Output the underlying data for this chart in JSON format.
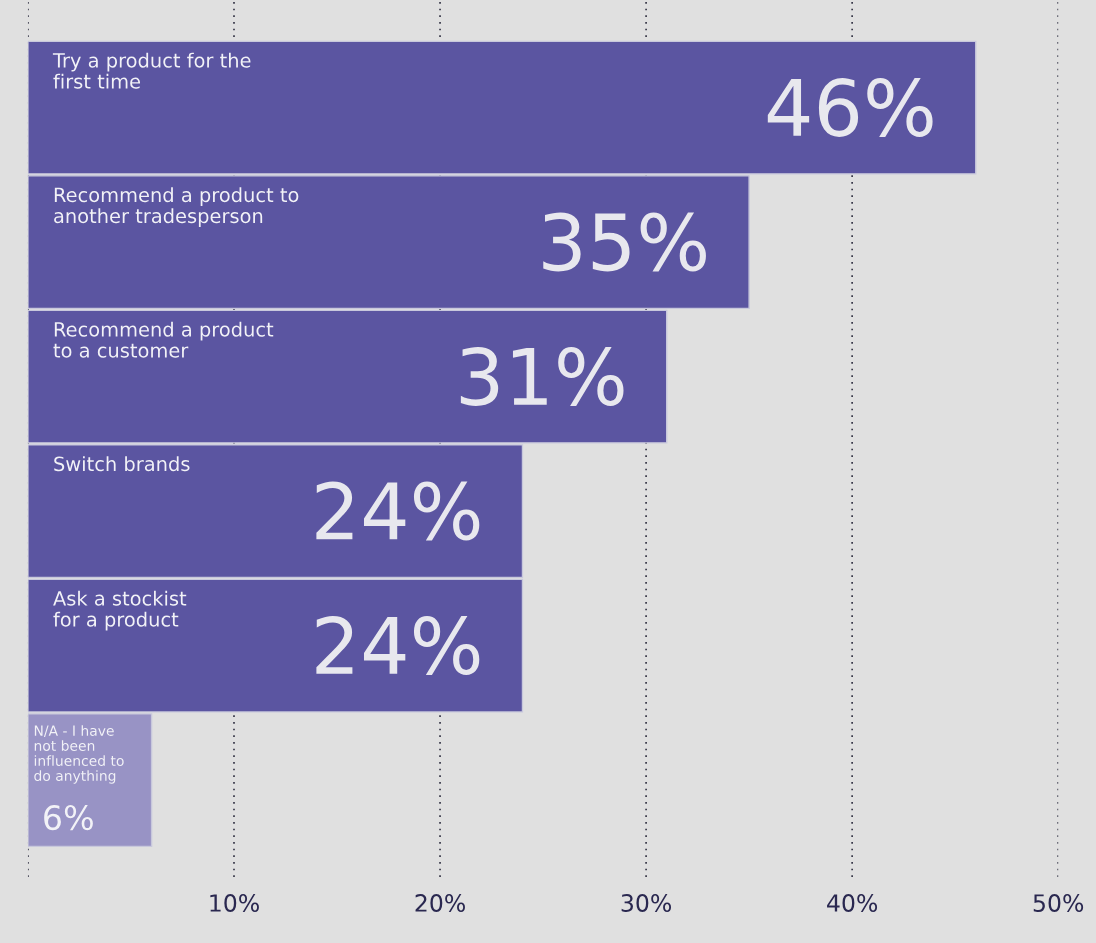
{
  "chart_data": {
    "type": "bar",
    "orientation": "horizontal",
    "categories": [
      "Try a product for the\nfirst time",
      "Recommend a product to\nanother tradesperson",
      "Recommend a product\nto a customer",
      "Switch brands",
      "Ask a stockist\nfor a product",
      "N/A - I have\nnot been\ninfluenced to\ndo anything"
    ],
    "values": [
      46,
      35,
      31,
      24,
      24,
      6
    ],
    "value_labels": [
      "46%",
      "35%",
      "31%",
      "24%",
      "24%",
      "6%"
    ],
    "colors": [
      "#5b55a1",
      "#5b55a1",
      "#5b55a1",
      "#5b55a1",
      "#5b55a1",
      "#9893c5"
    ],
    "xlim": [
      0,
      50
    ],
    "xticks": [
      {
        "value": 0,
        "label": null
      },
      {
        "value": 10,
        "label": "10%"
      },
      {
        "value": 20,
        "label": "20%"
      },
      {
        "value": 30,
        "label": "30%"
      },
      {
        "value": 40,
        "label": "40%"
      },
      {
        "value": 50,
        "label": "50%"
      }
    ],
    "grid": "x",
    "tick_labels": "x"
  }
}
